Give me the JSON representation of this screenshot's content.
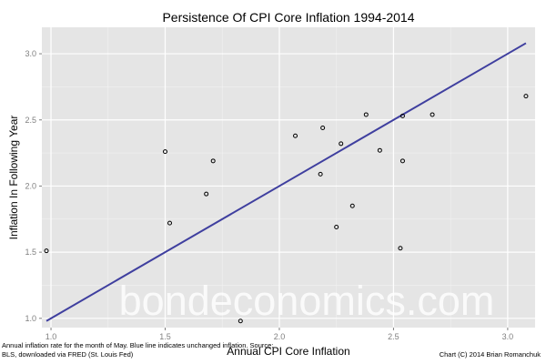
{
  "chart_data": {
    "type": "scatter",
    "title": "Persistence Of CPI Core Inflation 1994-2014",
    "xlabel": "Annual CPI Core Inflation",
    "ylabel": "Inflation In Following Year",
    "xlim": [
      0.96,
      3.12
    ],
    "ylim": [
      0.93,
      3.2
    ],
    "xticks": [
      "1.0",
      "1.5",
      "2.0",
      "2.5",
      "3.0"
    ],
    "yticks": [
      "1.0",
      "1.5",
      "2.0",
      "2.5",
      "3.0"
    ],
    "points": [
      {
        "x": 0.98,
        "y": 1.51
      },
      {
        "x": 1.5,
        "y": 2.26
      },
      {
        "x": 1.52,
        "y": 1.72
      },
      {
        "x": 1.68,
        "y": 1.94
      },
      {
        "x": 1.71,
        "y": 2.19
      },
      {
        "x": 1.83,
        "y": 0.98
      },
      {
        "x": 2.07,
        "y": 2.38
      },
      {
        "x": 2.18,
        "y": 2.09
      },
      {
        "x": 2.19,
        "y": 2.44
      },
      {
        "x": 2.25,
        "y": 1.69
      },
      {
        "x": 2.27,
        "y": 2.32
      },
      {
        "x": 2.32,
        "y": 1.85
      },
      {
        "x": 2.38,
        "y": 2.54
      },
      {
        "x": 2.44,
        "y": 2.27
      },
      {
        "x": 2.53,
        "y": 1.53
      },
      {
        "x": 2.54,
        "y": 2.19
      },
      {
        "x": 2.54,
        "y": 2.53
      },
      {
        "x": 2.67,
        "y": 2.54
      },
      {
        "x": 3.08,
        "y": 2.68
      }
    ],
    "reference_line": {
      "label": "unchanged inflation",
      "x": [
        0.98,
        3.08
      ],
      "y": [
        0.98,
        3.08
      ],
      "color": "#3f3f9f"
    },
    "grid": true
  },
  "watermark": "bondeconomics.com",
  "footnote_left": "Annual inflation rate for the month of May. Blue line indicates unchanged inflation. Source: BLS, downloaded via FRED (St. Louis Fed)",
  "footnote_right": "Chart (C) 2014 Brian Romanchuk"
}
